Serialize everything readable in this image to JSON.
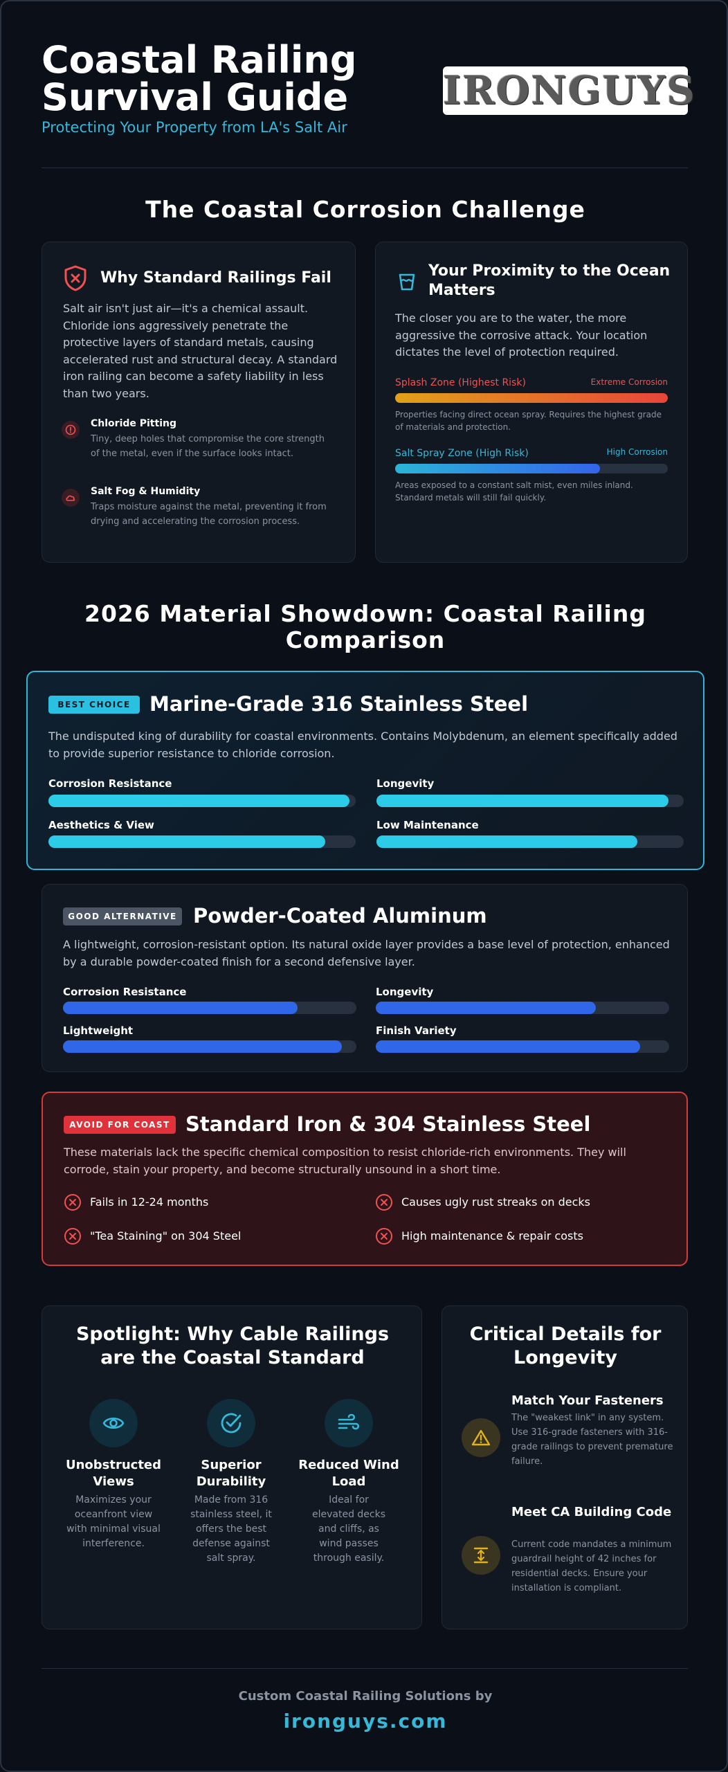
{
  "header": {
    "title": "Coastal Railing Survival Guide",
    "subtitle": "Protecting Your Property from LA's Salt Air",
    "logo_text": "IRONGUYS"
  },
  "challenge": {
    "section_title": "The Coastal Corrosion Challenge",
    "why_fail": {
      "title": "Why Standard Railings Fail",
      "body": "Salt air isn't just air—it's a chemical assault. Chloride ions aggressively penetrate the protective layers of standard metals, causing accelerated rust and structural decay. A standard iron railing can become a safety liability in less than two years.",
      "points": [
        {
          "title": "Chloride Pitting",
          "text": "Tiny, deep holes that compromise the core strength of the metal, even if the surface looks intact.",
          "icon": "alert-circle-icon"
        },
        {
          "title": "Salt Fog & Humidity",
          "text": "Traps moisture against the metal, preventing it from drying and accelerating the corrosion process.",
          "icon": "cloud-icon"
        }
      ]
    },
    "proximity": {
      "title": "Your Proximity to the Ocean Matters",
      "body": "The closer you are to the water, the more aggressive the corrosive attack. Your location dictates the level of protection required.",
      "zones": [
        {
          "name": "Splash Zone (Highest Risk)",
          "level": "Extreme Corrosion",
          "level_pct": 100,
          "desc": "Properties facing direct ocean spray. Requires the highest grade of materials and protection.",
          "color": "#f05252"
        },
        {
          "name": "Salt Spray Zone (High Risk)",
          "level": "High Corrosion",
          "level_pct": 75,
          "desc": "Areas exposed to a constant salt mist, even miles inland. Standard metals will still fail quickly.",
          "color": "#36b8d9"
        }
      ]
    }
  },
  "showdown": {
    "section_title": "2026 Material Showdown: Coastal Railing Comparison",
    "best": {
      "badge": "BEST CHOICE",
      "title": "Marine-Grade 316 Stainless Steel",
      "body": "The undisputed king of durability for coastal environments. Contains Molybdenum, an element specifically added to provide superior resistance to chloride corrosion.",
      "metrics": [
        {
          "label": "Corrosion Resistance",
          "pct": 98
        },
        {
          "label": "Longevity",
          "pct": 95
        },
        {
          "label": "Aesthetics & View",
          "pct": 90
        },
        {
          "label": "Low Maintenance",
          "pct": 85
        }
      ]
    },
    "good": {
      "badge": "GOOD ALTERNATIVE",
      "title": "Powder-Coated Aluminum",
      "body": "A lightweight, corrosion-resistant option. Its natural oxide layer provides a base level of protection, enhanced by a durable powder-coated finish for a second defensive layer.",
      "metrics": [
        {
          "label": "Corrosion Resistance",
          "pct": 80
        },
        {
          "label": "Longevity",
          "pct": 75
        },
        {
          "label": "Lightweight",
          "pct": 95
        },
        {
          "label": "Finish Variety",
          "pct": 90
        }
      ]
    },
    "avoid": {
      "badge": "AVOID FOR COAST",
      "title": "Standard Iron & 304 Stainless Steel",
      "body": "These materials lack the specific chemical composition to resist chloride-rich environments. They will corrode, stain your property, and become structurally unsound in a short time.",
      "points": [
        "Fails in 12-24 months",
        "Causes ugly rust streaks on decks",
        "\"Tea Staining\" on 304 Steel",
        "High maintenance & repair costs"
      ]
    }
  },
  "spotlight": {
    "title": "Spotlight: Why Cable Railings are the Coastal Standard",
    "features": [
      {
        "title": "Unobstructed Views",
        "text": "Maximizes your oceanfront view with minimal visual interference.",
        "icon": "eye-icon"
      },
      {
        "title": "Superior Durability",
        "text": "Made from 316 stainless steel, it offers the best defense against salt spray.",
        "icon": "check-circle-icon"
      },
      {
        "title": "Reduced Wind Load",
        "text": "Ideal for elevated decks and cliffs, as wind passes through easily.",
        "icon": "wind-icon"
      }
    ]
  },
  "details": {
    "title": "Critical Details for Longevity",
    "items": [
      {
        "title": "Match Your Fasteners",
        "text": "The \"weakest link\" in any system. Use 316-grade fasteners with 316-grade railings to prevent premature failure.",
        "icon": "warning-icon"
      },
      {
        "title": "Meet CA Building Code",
        "text": "Current code mandates a minimum guardrail height of 42 inches for residential decks. Ensure your installation is compliant.",
        "icon": "height-icon"
      }
    ]
  },
  "footer": {
    "label": "Custom Coastal Railing Solutions by",
    "url": "ironguys.com"
  },
  "colors": {
    "accent_cyan": "#36b8d9",
    "accent_blue": "#2f67e8",
    "danger_red": "#e53b3b",
    "warning_yellow": "#d6a21d",
    "background": "#0b0f17"
  }
}
